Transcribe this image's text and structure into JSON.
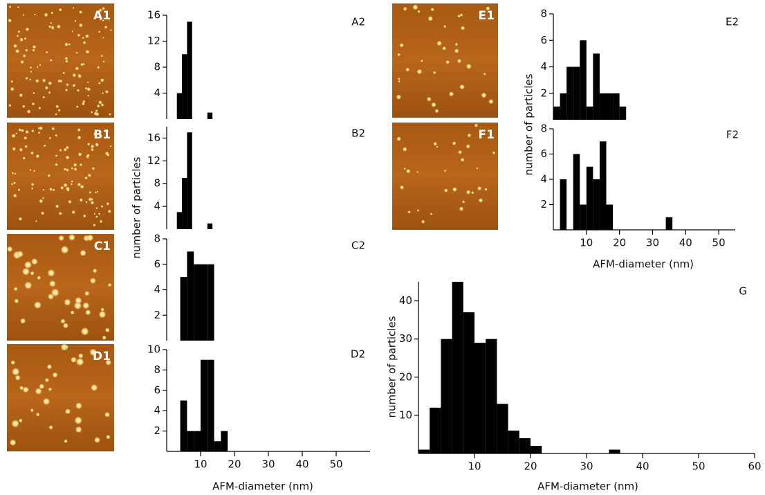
{
  "images": [
    {
      "label": "A1"
    },
    {
      "label": "B1"
    },
    {
      "label": "C1"
    },
    {
      "label": "D1"
    },
    {
      "label": "E1"
    },
    {
      "label": "F1"
    }
  ],
  "chart_data": [
    {
      "type": "histogram",
      "label": "A2",
      "color": "#000000",
      "bins": [
        3,
        4.5,
        6,
        7.5,
        9,
        10.5,
        12,
        13.5
      ],
      "values": [
        4,
        10,
        15,
        0,
        0,
        0,
        1
      ],
      "xlim": [
        0,
        60
      ],
      "ylim": [
        0,
        16
      ],
      "yticks": [
        4,
        8,
        12,
        16
      ]
    },
    {
      "type": "histogram",
      "label": "B2",
      "color": "#000000",
      "bins": [
        3,
        4.5,
        6,
        7.5,
        9,
        10.5,
        12,
        13.5
      ],
      "values": [
        3,
        9,
        17,
        0,
        0,
        0,
        1
      ],
      "xlim": [
        0,
        60
      ],
      "ylim": [
        0,
        18
      ],
      "yticks": [
        4,
        8,
        12,
        16
      ],
      "ylabel": "number of particles"
    },
    {
      "type": "histogram",
      "label": "C2",
      "color": "#000000",
      "bins": [
        4,
        6,
        8,
        10,
        12,
        14
      ],
      "values": [
        5,
        7,
        6,
        6,
        6
      ],
      "xlim": [
        0,
        60
      ],
      "ylim": [
        0,
        8
      ],
      "yticks": [
        2,
        4,
        6,
        8
      ]
    },
    {
      "type": "histogram",
      "label": "D2",
      "color": "#000000",
      "bins": [
        4,
        6,
        8,
        10,
        12,
        14,
        16,
        18
      ],
      "values": [
        5,
        2,
        2,
        9,
        9,
        1,
        2
      ],
      "xlim": [
        0,
        60
      ],
      "ylim": [
        0,
        10
      ],
      "yticks": [
        2,
        4,
        6,
        8,
        10
      ],
      "xticks": [
        10,
        20,
        30,
        40,
        50
      ],
      "xlabel": "AFM-diameter (nm)"
    },
    {
      "type": "histogram",
      "label": "E2",
      "color": "#000000",
      "bins": [
        0,
        2,
        4,
        6,
        8,
        10,
        12,
        14,
        16,
        18,
        20,
        22,
        24,
        26,
        28,
        30,
        32,
        34,
        36,
        38,
        40,
        42,
        44,
        46,
        48,
        50,
        52,
        54
      ],
      "values": [
        1,
        2,
        4,
        4,
        6,
        1,
        5,
        2,
        2,
        2,
        1,
        0,
        0,
        0,
        0,
        0,
        0,
        0,
        0,
        0,
        0,
        0,
        0,
        0,
        0,
        0,
        0
      ],
      "xlim": [
        0,
        55
      ],
      "ylim": [
        0,
        8
      ],
      "yticks": [
        2,
        4,
        6,
        8
      ],
      "ylabel": "number of particles"
    },
    {
      "type": "histogram",
      "label": "F2",
      "color": "#000000",
      "bins": [
        0,
        2,
        4,
        6,
        8,
        10,
        12,
        14,
        16,
        18,
        20,
        22,
        24,
        26,
        28,
        30,
        32,
        34,
        36,
        38,
        40,
        42,
        44,
        46,
        48,
        50,
        52,
        54
      ],
      "values": [
        0,
        4,
        0,
        6,
        2,
        5,
        4,
        7,
        2,
        0,
        0,
        0,
        0,
        0,
        0,
        0,
        0,
        1,
        0,
        0,
        0,
        0,
        0,
        0,
        0,
        0,
        0
      ],
      "xlim": [
        0,
        55
      ],
      "ylim": [
        0,
        8
      ],
      "yticks": [
        2,
        4,
        6,
        8
      ],
      "xticks": [
        10,
        20,
        30,
        40,
        50
      ],
      "xlabel": "AFM-diameter (nm)"
    },
    {
      "type": "histogram",
      "label": "G",
      "color": "#000000",
      "bins": [
        0,
        2,
        4,
        6,
        8,
        10,
        12,
        14,
        16,
        18,
        20,
        22,
        24,
        26,
        28,
        30,
        32,
        34,
        36,
        38,
        40,
        42,
        44,
        46,
        48,
        50,
        52,
        54,
        56,
        58,
        60
      ],
      "values": [
        1,
        12,
        30,
        45,
        37,
        29,
        30,
        13,
        6,
        4,
        2,
        0,
        0,
        0,
        0,
        0,
        0,
        1,
        0,
        0,
        0,
        0,
        0,
        0,
        0,
        0,
        0,
        0,
        0,
        0
      ],
      "xlim": [
        0,
        60
      ],
      "ylim": [
        0,
        45
      ],
      "yticks": [
        10,
        20,
        30,
        40
      ],
      "xticks": [
        10,
        20,
        30,
        40,
        50,
        60
      ],
      "xlabel": "AFM-diameter (nm)",
      "ylabel": "number of particles"
    }
  ]
}
